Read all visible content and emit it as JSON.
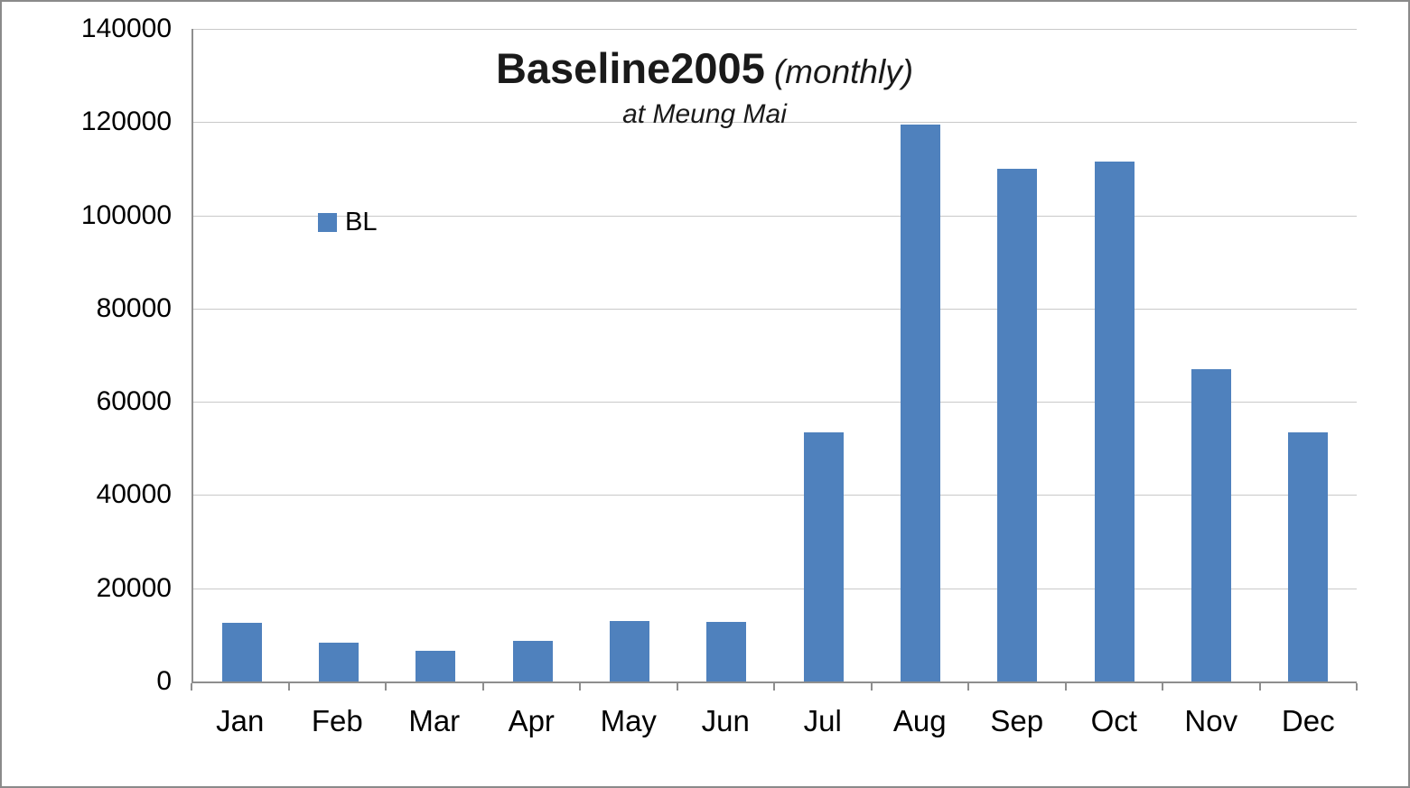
{
  "chart": {
    "title_main": "Baseline2005",
    "title_suffix": "(monthly)",
    "subtitle": "at Meung Mai",
    "legend_label": "BL"
  },
  "chart_data": {
    "type": "bar",
    "title": "Baseline2005 (monthly)",
    "subtitle": "at Meung Mai",
    "categories": [
      "Jan",
      "Feb",
      "Mar",
      "Apr",
      "May",
      "Jun",
      "Jul",
      "Aug",
      "Sep",
      "Oct",
      "Nov",
      "Dec"
    ],
    "series": [
      {
        "name": "BL",
        "color": "#4F81BD",
        "values": [
          12500,
          8300,
          6500,
          8700,
          12900,
          12800,
          53500,
          119500,
          110000,
          111500,
          67000,
          53500
        ]
      }
    ],
    "xlabel": "",
    "ylabel": "",
    "ylim": [
      0,
      140000
    ],
    "ytick_step": 20000,
    "grid": true,
    "gridline_color": "#c9c9c9",
    "axis_color": "#8e8e8e",
    "legend_position": "inside-left"
  }
}
